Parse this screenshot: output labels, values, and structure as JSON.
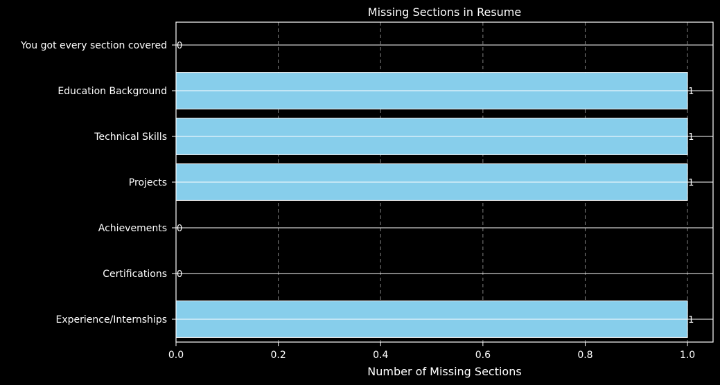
{
  "chart_data": {
    "type": "bar",
    "orientation": "horizontal",
    "title": "Missing Sections in Resume",
    "xlabel": "Number of Missing Sections",
    "ylabel": "",
    "categories": [
      "Experience/Internships",
      "Certifications",
      "Achievements",
      "Projects",
      "Technical Skills",
      "Education Background",
      "You got every section covered"
    ],
    "values": [
      1,
      0,
      0,
      1,
      1,
      1,
      0
    ],
    "data_labels": [
      "1",
      "0",
      "0",
      "1",
      "1",
      "1",
      "0"
    ],
    "x_ticks": [
      "0.0",
      "0.2",
      "0.4",
      "0.6",
      "0.8",
      "1.0"
    ],
    "xlim": [
      0,
      1.05
    ],
    "grid": "x-dashed",
    "legend": "none",
    "colors": {
      "background": "#000000",
      "bar_fill": "#87ceeb",
      "bar_edge": "#ffffff",
      "axis": "#ffffff",
      "grid": "#808080",
      "text": "#ffffff"
    }
  }
}
